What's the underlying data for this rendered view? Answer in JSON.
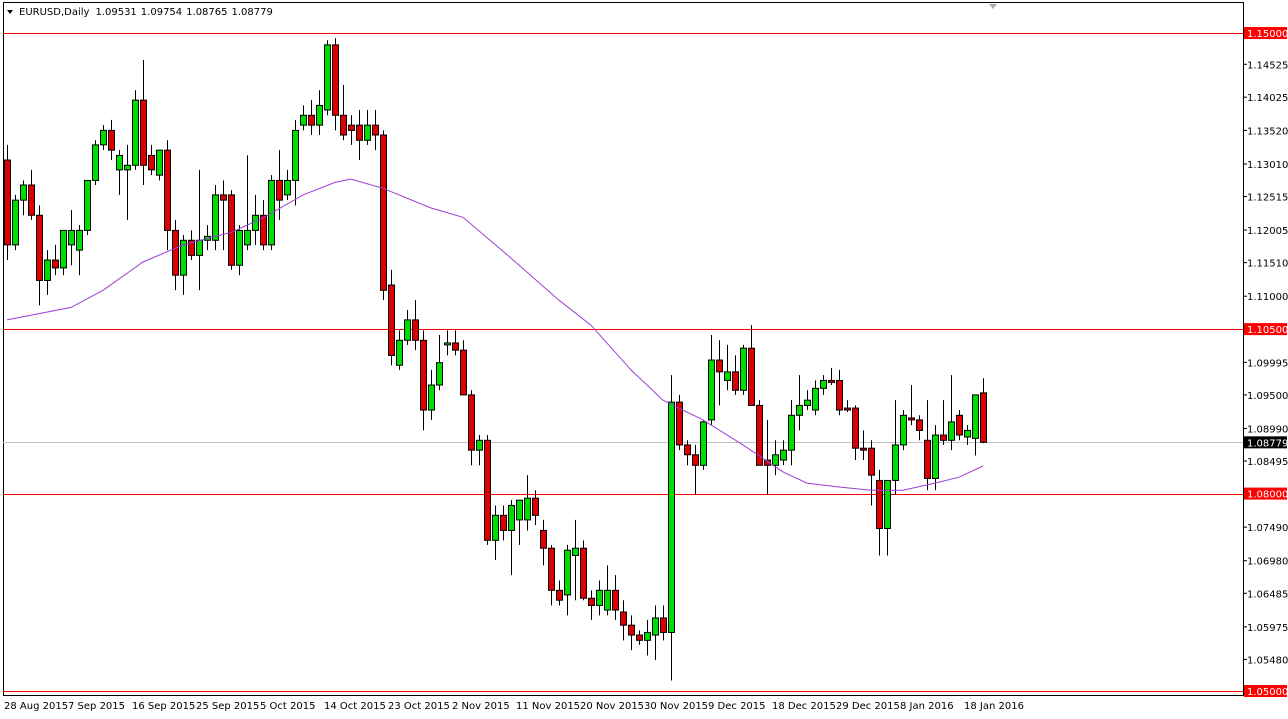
{
  "chart_data": {
    "type": "candlestick",
    "title": "EURUSD,Daily",
    "categories": [
      "28 Aug 2015",
      null,
      null,
      null,
      null,
      null,
      null,
      null,
      "7 Sep 2015",
      null,
      null,
      null,
      null,
      null,
      null,
      null,
      "16 Sep 2015",
      null,
      null,
      null,
      null,
      null,
      null,
      null,
      "25 Sep 2015",
      null,
      null,
      null,
      null,
      null,
      null,
      null,
      "5 Oct 2015",
      null,
      null,
      null,
      null,
      null,
      null,
      null,
      "14 Oct 2015",
      null,
      null,
      null,
      null,
      null,
      null,
      null,
      "23 Oct 2015",
      null,
      null,
      null,
      null,
      null,
      null,
      null,
      "2 Nov 2015",
      null,
      null,
      null,
      null,
      null,
      null,
      null,
      "11 Nov 2015",
      null,
      null,
      null,
      null,
      null,
      null,
      null,
      "20 Nov 2015",
      null,
      null,
      null,
      null,
      null,
      null,
      null,
      "30 Nov 2015",
      null,
      null,
      null,
      null,
      null,
      null,
      null,
      "9 Dec 2015",
      null,
      null,
      null,
      null,
      null,
      null,
      null,
      "18 Dec 2015",
      null,
      null,
      null,
      null,
      null,
      null,
      null,
      "29 Dec 2015",
      null,
      null,
      null,
      null,
      null,
      null,
      null,
      "8 Jan 2016",
      null,
      null,
      null,
      null,
      null,
      null,
      null,
      "18 Jan 2016",
      null,
      null
    ],
    "open": [
      1.1307,
      1.1178,
      1.1246,
      1.1269,
      1.1223,
      1.1124,
      1.1155,
      1.1143,
      1.1178,
      1.117,
      1.12,
      1.1276,
      1.133,
      1.1352,
      1.1292,
      1.1292,
      1.1299,
      1.1398,
      1.1314,
      1.1284,
      1.1322,
      1.12,
      1.1132,
      1.1185,
      1.1162,
      1.1185,
      1.1185,
      1.1254,
      1.1254,
      1.1147,
      1.1178,
      1.12,
      1.1223,
      1.1178,
      1.1276,
      1.1254,
      1.1276,
      1.136,
      1.1375,
      1.136,
      1.1383,
      1.1482,
      1.1375,
      1.136,
      1.136,
      1.1337,
      1.136,
      1.1345,
      1.1117,
      1.0995,
      1.1033,
      1.1064,
      1.1033,
      1.0927,
      1.0965,
      1.1026,
      1.1029,
      1.1018,
      1.095,
      1.0866,
      1.0881,
      1.0729,
      1.0767,
      1.0744,
      1.076,
      1.076,
      1.0793,
      1.0744,
      1.0717,
      1.0653,
      1.0646,
      1.0706,
      1.0717,
      1.0641,
      1.063,
      1.0623,
      1.0653,
      1.062,
      1.06,
      1.0585,
      1.0577,
      1.0585,
      1.0611,
      1.0589,
      1.0939,
      1.0874,
      1.0859,
      1.0843,
      1.0912,
      1.1003,
      1.0972,
      1.0985,
      1.0957,
      1.1021,
      1.0934,
      1.0851,
      1.0843,
      1.0851,
      1.0866,
      1.0919,
      1.0934,
      1.0927,
      1.096,
      1.0972,
      1.0972,
      1.093,
      1.093,
      1.0869,
      1.0869,
      1.082,
      1.0747,
      1.082,
      1.0874,
      1.0915,
      1.0912,
      1.0881,
      1.0823,
      1.0889,
      1.0881,
      1.0919,
      1.0886,
      1.0884,
      1.09531
    ],
    "high": [
      1.133,
      1.1254,
      1.1276,
      1.1292,
      1.1238,
      1.117,
      1.1178,
      1.12,
      1.1231,
      1.1208,
      1.1276,
      1.1337,
      1.136,
      1.1368,
      1.1322,
      1.133,
      1.1413,
      1.1459,
      1.133,
      1.1322,
      1.1337,
      1.1216,
      1.1193,
      1.12,
      1.1292,
      1.1208,
      1.1269,
      1.1276,
      1.1261,
      1.1208,
      1.1314,
      1.1254,
      1.1246,
      1.1284,
      1.1322,
      1.1292,
      1.1368,
      1.139,
      1.1398,
      1.1413,
      1.1489,
      1.1492,
      1.1421,
      1.1375,
      1.1383,
      1.1383,
      1.1383,
      1.1352,
      1.114,
      1.1048,
      1.1079,
      1.1094,
      1.1048,
      1.0988,
      1.1041,
      1.1048,
      1.1048,
      1.1033,
      1.0957,
      1.0889,
      1.0889,
      1.0782,
      1.0782,
      1.079,
      1.079,
      1.0828,
      1.0805,
      1.076,
      1.0722,
      1.0668,
      1.0722,
      1.076,
      1.0729,
      1.0653,
      1.0668,
      1.0691,
      1.0676,
      1.0638,
      1.0615,
      1.0592,
      1.0608,
      1.063,
      1.063,
      1.098,
      1.095,
      1.0881,
      1.0874,
      1.0912,
      1.1041,
      1.1033,
      1.1026,
      1.101,
      1.1026,
      1.1056,
      1.0942,
      1.0912,
      1.0881,
      1.0881,
      1.0942,
      1.098,
      1.0957,
      1.0972,
      1.098,
      1.0991,
      1.0988,
      1.0942,
      1.0934,
      1.0896,
      1.0881,
      1.0836,
      1.082,
      1.0942,
      1.0927,
      1.0965,
      1.0919,
      1.0942,
      1.0904,
      1.0942,
      1.098,
      1.0927,
      1.0904,
      1.095,
      1.09754
    ],
    "low": [
      1.1155,
      1.117,
      1.1223,
      1.1216,
      1.1086,
      1.1102,
      1.1132,
      1.1132,
      1.1147,
      1.1132,
      1.1193,
      1.1269,
      1.1322,
      1.1307,
      1.1254,
      1.1216,
      1.1292,
      1.1269,
      1.1284,
      1.1276,
      1.117,
      1.1109,
      1.1102,
      1.1155,
      1.1109,
      1.117,
      1.117,
      1.117,
      1.114,
      1.1132,
      1.117,
      1.1178,
      1.117,
      1.117,
      1.1216,
      1.1246,
      1.1238,
      1.1352,
      1.1345,
      1.1345,
      1.1375,
      1.1352,
      1.1337,
      1.133,
      1.1307,
      1.133,
      1.1322,
      1.1094,
      1.0995,
      1.0988,
      1.1026,
      1.1018,
      1.0896,
      1.0912,
      1.0957,
      1.101,
      1.101,
      1.095,
      1.0843,
      1.0843,
      1.0722,
      1.0699,
      1.0729,
      1.0676,
      1.0722,
      1.0744,
      1.0752,
      1.0691,
      1.063,
      1.063,
      1.0615,
      1.0638,
      1.0638,
      1.0608,
      1.0615,
      1.0615,
      1.0608,
      1.0577,
      1.0562,
      1.057,
      1.0554,
      1.0547,
      1.0577,
      1.0516,
      1.0866,
      1.0843,
      1.0798,
      1.0836,
      1.0904,
      1.0934,
      1.0957,
      1.095,
      1.095,
      1.0934,
      1.0843,
      1.0798,
      1.0828,
      1.0843,
      1.0843,
      1.0896,
      1.0927,
      1.0919,
      1.095,
      1.0965,
      1.0919,
      1.0924,
      1.0851,
      1.0851,
      1.0782,
      1.0706,
      1.0706,
      1.0798,
      1.0866,
      1.0904,
      1.0881,
      1.0805,
      1.0805,
      1.0874,
      1.0866,
      1.0881,
      1.0874,
      1.0858,
      1.08765
    ],
    "close": [
      1.1178,
      1.1246,
      1.1269,
      1.1223,
      1.1124,
      1.1155,
      1.1143,
      1.12,
      1.12,
      1.12,
      1.1276,
      1.133,
      1.1352,
      1.1322,
      1.1314,
      1.1299,
      1.1398,
      1.1299,
      1.1292,
      1.1322,
      1.12,
      1.1132,
      1.1185,
      1.1162,
      1.1185,
      1.1191,
      1.1254,
      1.1246,
      1.1147,
      1.12,
      1.12,
      1.1223,
      1.1178,
      1.1276,
      1.1246,
      1.1276,
      1.1352,
      1.1375,
      1.136,
      1.139,
      1.1482,
      1.1375,
      1.1345,
      1.1352,
      1.1337,
      1.136,
      1.1345,
      1.1109,
      1.101,
      1.1033,
      1.1064,
      1.1033,
      1.0927,
      1.0965,
      1.0999,
      1.1029,
      1.1018,
      1.095,
      1.0866,
      1.0881,
      1.0729,
      1.0767,
      1.0744,
      1.0782,
      1.079,
      1.0793,
      1.0767,
      1.0717,
      1.0653,
      1.0638,
      1.0714,
      1.0717,
      1.0641,
      1.063,
      1.0653,
      1.0653,
      1.0623,
      1.06,
      1.0585,
      1.0577,
      1.0589,
      1.0611,
      1.0589,
      1.0939,
      1.0874,
      1.0859,
      1.0843,
      1.0909,
      1.1003,
      1.0985,
      1.0985,
      1.0957,
      1.1021,
      1.0934,
      1.0843,
      1.0843,
      1.0859,
      1.0866,
      1.0919,
      1.0934,
      1.0942,
      1.096,
      1.0972,
      1.0969,
      1.0927,
      1.0927,
      1.0869,
      1.0866,
      1.0828,
      1.0747,
      1.082,
      1.0874,
      1.0919,
      1.0912,
      1.0896,
      1.0823,
      1.0889,
      1.0881,
      1.0909,
      1.0889,
      1.0896,
      1.095,
      1.08779
    ],
    "up_color": "#00dd00",
    "down_color": "#dd0000",
    "ma": {
      "color": "#9a3fd6",
      "x": [
        0,
        8,
        12,
        17,
        22,
        28,
        32,
        37,
        41,
        43,
        47,
        53,
        57,
        63,
        69,
        73,
        78,
        82,
        87,
        92,
        97,
        100,
        104,
        108,
        112,
        116,
        119,
        122
      ],
      "values": [
        1.1064,
        1.1083,
        1.1109,
        1.1152,
        1.1178,
        1.1197,
        1.1219,
        1.1254,
        1.1273,
        1.1278,
        1.1264,
        1.1234,
        1.122,
        1.1158,
        1.1094,
        1.1056,
        1.0988,
        1.0942,
        1.0912,
        1.0874,
        1.0833,
        1.0816,
        1.081,
        1.0805,
        1.0805,
        1.0816,
        1.0825,
        1.0842
      ]
    },
    "hline_color": "#ff0000",
    "hlines": [
      {
        "value": 1.15,
        "label": "1.15000"
      },
      {
        "value": 1.105,
        "label": "1.10500"
      },
      {
        "value": 1.08,
        "label": "1.08000"
      },
      {
        "value": 1.05,
        "label": "1.05000"
      }
    ],
    "price_line_color": "#c0c0c0",
    "ylim": [
      1.04939,
      1.15502
    ],
    "yticks": [
      1.14525,
      1.14025,
      {
        "value": 1.1352,
        "label": "1.13520"
      },
      {
        "value": 1.1301,
        "label": "1.13010"
      },
      1.12515,
      1.12005,
      {
        "value": 1.1151,
        "label": "1.11510"
      },
      {
        "value": 1.11,
        "label": "1.11000"
      },
      1.09995,
      {
        "value": 1.095,
        "label": "1.09500"
      },
      {
        "value": 1.0899,
        "label": "1.08990"
      },
      1.08495,
      {
        "value": 1.0749,
        "label": "1.07490"
      },
      {
        "value": 1.0698,
        "label": "1.06980"
      },
      1.06485,
      1.05975,
      {
        "value": 1.0548,
        "label": "1.05480"
      }
    ],
    "grid": false
  }
}
